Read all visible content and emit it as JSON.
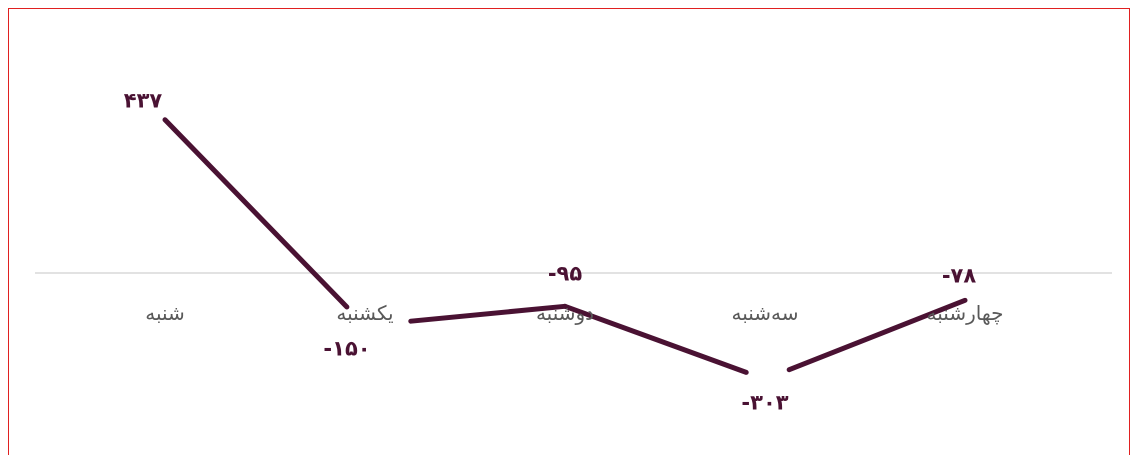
{
  "chart_data": {
    "type": "line",
    "categories": [
      "شنبه",
      "یکشنبه",
      "دوشنبه",
      "سه‌شنبه",
      "چهارشنبه"
    ],
    "series": [
      {
        "values": [
          437,
          -150,
          -95,
          -303,
          -78
        ]
      }
    ],
    "data_labels": [
      "۴۳۷",
      "-۱۵۰",
      "-۹۵",
      "-۳۰۳",
      "-۷۸"
    ],
    "x_direction": "right-to-left",
    "line_color": "#4a1233",
    "axis_color": "#d9d9d9",
    "label_color": "#595959",
    "frame_color": "#e02020",
    "grid": false,
    "legend": "none"
  }
}
